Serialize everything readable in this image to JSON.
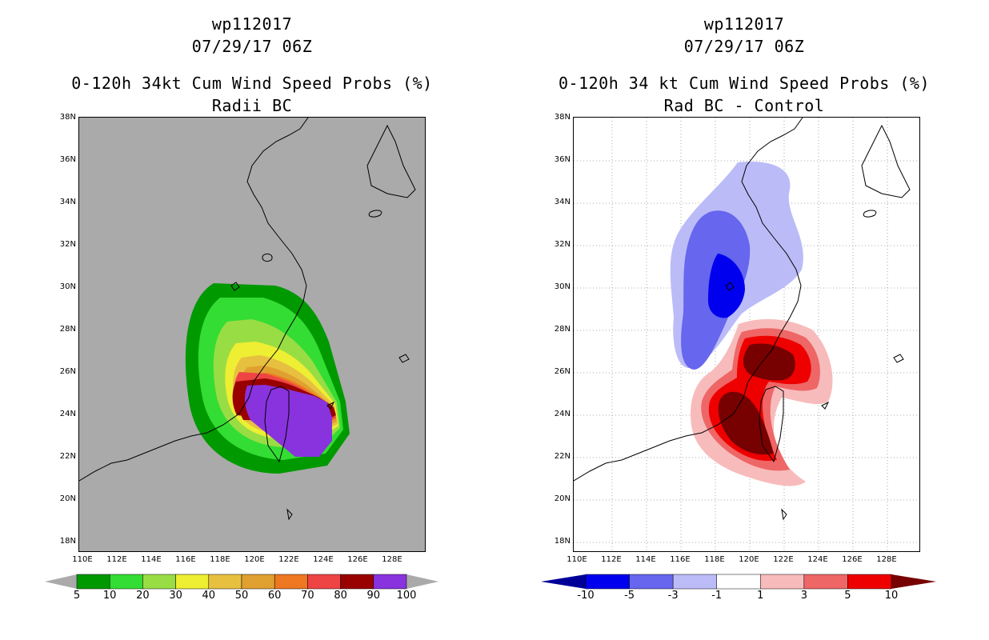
{
  "left": {
    "title_line1": "wp112017",
    "title_line2": "07/29/17 06Z",
    "title_line3": "0-120h 34kt Cum Wind Speed Probs (%)",
    "title_line4": "Radii BC",
    "colorbar_labels": [
      "5",
      "10",
      "20",
      "30",
      "40",
      "50",
      "60",
      "70",
      "80",
      "90",
      "100"
    ],
    "colorbar_colors": [
      "#009900",
      "#33dd33",
      "#99dd44",
      "#eeee33",
      "#e8c040",
      "#e0a030",
      "#ee7722",
      "#ee4444",
      "#990000",
      "#8833dd"
    ]
  },
  "right": {
    "title_line1": "wp112017",
    "title_line2": "07/29/17 06Z",
    "title_line3": "0-120h 34 kt Cum Wind Speed Probs (%)",
    "title_line4": "Rad BC - Control",
    "colorbar_labels": [
      "-10",
      "-5",
      "-3",
      "-1",
      "1",
      "3",
      "5",
      "10"
    ],
    "colorbar_colors": [
      "#000099",
      "#0000ee",
      "#6666ee",
      "#bbbbf8",
      "#ffffff",
      "#f8bbbb",
      "#ee6666",
      "#ee0000",
      "#770000"
    ]
  },
  "lat_labels": [
    "38N",
    "36N",
    "34N",
    "32N",
    "30N",
    "28N",
    "26N",
    "24N",
    "22N",
    "20N",
    "18N"
  ],
  "lon_labels": [
    "110E",
    "112E",
    "114E",
    "116E",
    "118E",
    "120E",
    "122E",
    "124E",
    "126E",
    "128E"
  ]
}
